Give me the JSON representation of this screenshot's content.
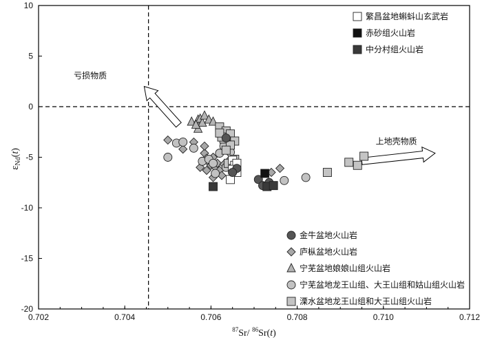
{
  "chart_data": {
    "type": "scatter",
    "title": "",
    "xlim": [
      0.702,
      0.712
    ],
    "ylim": [
      -20,
      10
    ],
    "xticks": [
      "0.702",
      "0.704",
      "0.706",
      "0.708",
      "0.710",
      "0.712"
    ],
    "yticks": [
      "10",
      "5",
      "0",
      "-5",
      "-10",
      "-15",
      "-20"
    ],
    "xticks_values": [
      0.702,
      0.704,
      0.706,
      0.708,
      0.71,
      0.712
    ],
    "yticks_values": [
      10,
      5,
      0,
      -5,
      -10,
      -15,
      -20
    ],
    "xlabel": {
      "pre": "87",
      "a": "Sr/ ",
      "pre2": "86",
      "b": "Sr(",
      "t": "t",
      "c": ")"
    },
    "ylabel": {
      "eps": "ε",
      "sub": "Nd",
      "open": "(",
      "t": "t",
      "close": ")"
    },
    "reference_lines": {
      "x": 0.70455,
      "y": 0,
      "style": "dashed"
    },
    "annotations": [
      {
        "text": "亏损物质",
        "x": 0.7032,
        "y": 2.8,
        "arrow_from": [
          0.70525,
          -1.8
        ],
        "arrow_to": [
          0.70445,
          2.0
        ]
      },
      {
        "text": "上地壳物质",
        "x": 0.7103,
        "y": -3.7,
        "arrow_from": [
          0.7095,
          -5.4
        ],
        "arrow_to": [
          0.7112,
          -4.6
        ]
      }
    ],
    "legend_top": [
      {
        "text": "繁昌盆地蝌蚪山玄武岩",
        "marker": "square",
        "fill": "#ffffff"
      },
      {
        "text": "赤砂组火山岩",
        "marker": "square",
        "fill": "#111111"
      },
      {
        "text": "中分村组火山岩",
        "marker": "square",
        "fill": "#3a3a3a"
      }
    ],
    "legend_bottom": [
      {
        "text": "金牛盆地火山岩",
        "marker": "circle",
        "fill": "#555555"
      },
      {
        "text": "庐枞盆地火山岩",
        "marker": "diamond",
        "fill": "#a8a8a8"
      },
      {
        "text": "宁芜盆地娘娘山组火山岩",
        "marker": "triangle",
        "fill": "#b4b4b4"
      },
      {
        "text": "宁芜盆地龙王山组、大王山组和姑山组火山岩",
        "marker": "circle",
        "fill": "#c2c2c2"
      },
      {
        "text": "溧水盆地龙王山组和大王山组火山岩",
        "marker": "square",
        "fill": "#c4c4c4"
      }
    ],
    "series": [
      {
        "name": "繁昌盆地蝌蚪山玄武岩",
        "marker": "square",
        "fill": "#ffffff",
        "x": [
          0.7065,
          0.70655,
          0.7066,
          0.70645,
          0.7066,
          0.7065
        ],
        "y": [
          -5.3,
          -5.8,
          -6.5,
          -7.2,
          -5.6,
          -6.2
        ]
      },
      {
        "name": "赤砂组火山岩",
        "marker": "square",
        "fill": "#111111",
        "x": [
          0.70725
        ],
        "y": [
          -6.6
        ]
      },
      {
        "name": "中分村组火山岩",
        "marker": "square",
        "fill": "#3a3a3a",
        "x": [
          0.70605,
          0.7073,
          0.70745
        ],
        "y": [
          -7.9,
          -7.9,
          -7.8
        ]
      },
      {
        "name": "金牛盆地火山岩",
        "marker": "circle",
        "fill": "#555555",
        "x": [
          0.70635,
          0.7066,
          0.7071,
          0.7072,
          0.7065,
          0.70735
        ],
        "y": [
          -3.1,
          -6.1,
          -7.2,
          -7.8,
          -6.5,
          -7.5
        ]
      },
      {
        "name": "庐枞盆地火山岩",
        "marker": "diamond",
        "fill": "#a8a8a8",
        "x": [
          0.705,
          0.70535,
          0.7056,
          0.70585,
          0.7059,
          0.70595,
          0.706,
          0.70605,
          0.7061,
          0.70615,
          0.7062,
          0.70625,
          0.70605,
          0.70575,
          0.7063,
          0.7064,
          0.7059,
          0.7076,
          0.7074,
          0.70585
        ],
        "y": [
          -3.3,
          -4.2,
          -3.5,
          -4.6,
          -5.1,
          -5.5,
          -5.8,
          -5.0,
          -6.0,
          -5.6,
          -6.3,
          -6.8,
          -7.0,
          -6.0,
          -5.7,
          -5.4,
          -6.3,
          -6.1,
          -6.5,
          -3.9
        ]
      },
      {
        "name": "宁芜盆地娘娘山组火山岩",
        "marker": "triangle",
        "fill": "#b4b4b4",
        "x": [
          0.70555,
          0.7057,
          0.70575,
          0.7058,
          0.70585,
          0.70595,
          0.7057,
          0.70565,
          0.70605
        ],
        "y": [
          -1.5,
          -1.3,
          -1.2,
          -1.6,
          -0.9,
          -1.3,
          -2.2,
          -1.8,
          -1.5
        ]
      },
      {
        "name": "宁芜盆地龙王山组、大王山组和姑山组火山岩",
        "marker": "circle",
        "fill": "#c2c2c2",
        "x": [
          0.705,
          0.7052,
          0.70535,
          0.7056,
          0.7058,
          0.70595,
          0.7063,
          0.70645,
          0.7062,
          0.70635,
          0.7077,
          0.7082,
          0.7061,
          0.70605,
          0.7064
        ],
        "y": [
          -5.0,
          -3.6,
          -3.5,
          -4.1,
          -5.4,
          -5.2,
          -3.9,
          -4.5,
          -4.6,
          -6.0,
          -7.3,
          -7.0,
          -6.6,
          -5.6,
          -3.0
        ]
      },
      {
        "name": "溧水盆地龙王山组和大王山组火山岩",
        "marker": "square",
        "fill": "#c4c4c4",
        "x": [
          0.7062,
          0.70635,
          0.70645,
          0.7063,
          0.70625,
          0.70655,
          0.70645,
          0.7062,
          0.7087,
          0.7092,
          0.7094,
          0.70955,
          0.70635,
          0.70655,
          0.7064
        ],
        "y": [
          -2.0,
          -2.4,
          -2.7,
          -3.2,
          -3.0,
          -3.4,
          -3.8,
          -2.6,
          -6.5,
          -5.5,
          -5.8,
          -4.9,
          -4.3,
          -5.2,
          -5.6
        ]
      }
    ]
  }
}
